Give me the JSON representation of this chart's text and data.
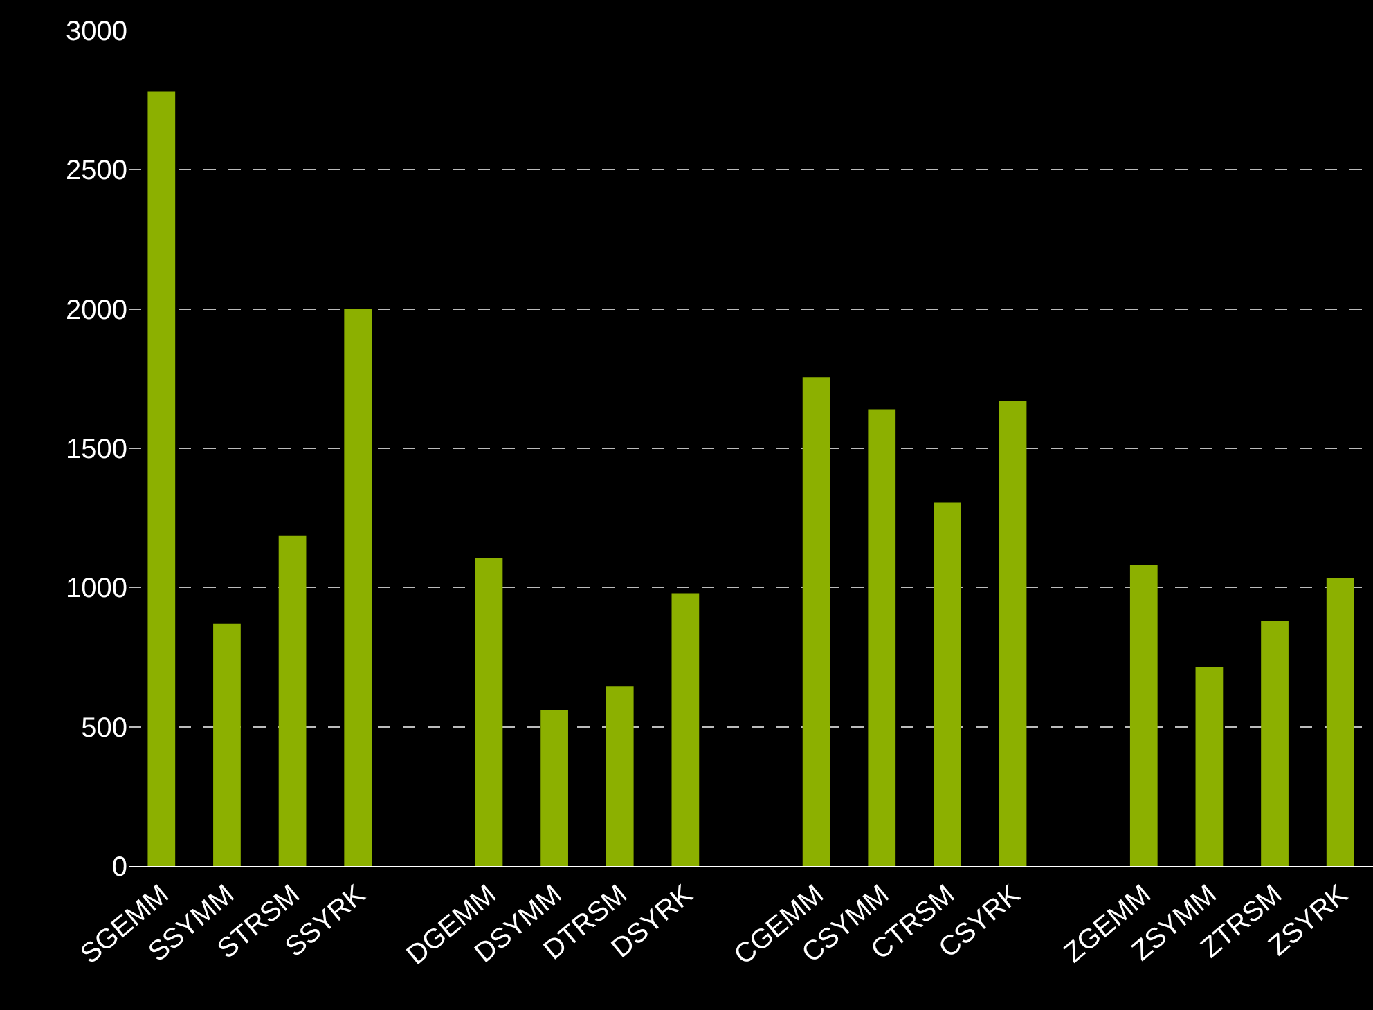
{
  "chart_data": {
    "type": "bar",
    "categories": [
      "SGEMM",
      "SSYMM",
      "STRSM",
      "SSYRK",
      null,
      "DGEMM",
      "DSYMM",
      "DTRSM",
      "DSYRK",
      null,
      "CGEMM",
      "CSYMM",
      "CTRSM",
      "CSYRK",
      null,
      "ZGEMM",
      "ZSYMM",
      "ZTRSM",
      "ZSYRK"
    ],
    "values": [
      2780,
      870,
      1185,
      2000,
      null,
      1105,
      560,
      645,
      980,
      null,
      1755,
      1640,
      1305,
      1670,
      null,
      1080,
      715,
      880,
      1035
    ],
    "color": "#8cb000",
    "ylim": [
      0,
      3000
    ],
    "yticks": [
      0,
      500,
      1000,
      1500,
      2000,
      2500,
      3000
    ],
    "grid": "y",
    "legend": false
  }
}
